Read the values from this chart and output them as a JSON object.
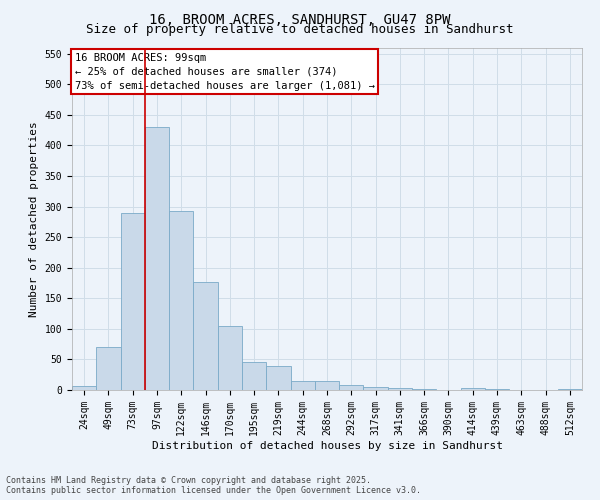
{
  "title_line1": "16, BROOM ACRES, SANDHURST, GU47 8PW",
  "title_line2": "Size of property relative to detached houses in Sandhurst",
  "xlabel": "Distribution of detached houses by size in Sandhurst",
  "ylabel": "Number of detached properties",
  "bar_labels": [
    "24sqm",
    "49sqm",
    "73sqm",
    "97sqm",
    "122sqm",
    "146sqm",
    "170sqm",
    "195sqm",
    "219sqm",
    "244sqm",
    "268sqm",
    "292sqm",
    "317sqm",
    "341sqm",
    "366sqm",
    "390sqm",
    "414sqm",
    "439sqm",
    "463sqm",
    "488sqm",
    "512sqm"
  ],
  "bar_values": [
    7,
    70,
    290,
    430,
    293,
    176,
    105,
    45,
    40,
    15,
    15,
    8,
    5,
    4,
    1,
    0,
    3,
    1,
    0,
    0,
    2
  ],
  "bar_color": "#c9d9e9",
  "bar_edge_color": "#7aaac8",
  "grid_color": "#d0dde8",
  "background_color": "#edf3fa",
  "red_line_index": 3,
  "bar_width": 1.0,
  "annotation_text": "16 BROOM ACRES: 99sqm\n← 25% of detached houses are smaller (374)\n73% of semi-detached houses are larger (1,081) →",
  "annotation_box_color": "#cc0000",
  "ylim": [
    0,
    560
  ],
  "yticks": [
    0,
    50,
    100,
    150,
    200,
    250,
    300,
    350,
    400,
    450,
    500,
    550
  ],
  "footer_text": "Contains HM Land Registry data © Crown copyright and database right 2025.\nContains public sector information licensed under the Open Government Licence v3.0.",
  "title_fontsize": 10,
  "subtitle_fontsize": 9,
  "axis_label_fontsize": 8,
  "tick_fontsize": 7,
  "annotation_fontsize": 7.5,
  "footer_fontsize": 6
}
